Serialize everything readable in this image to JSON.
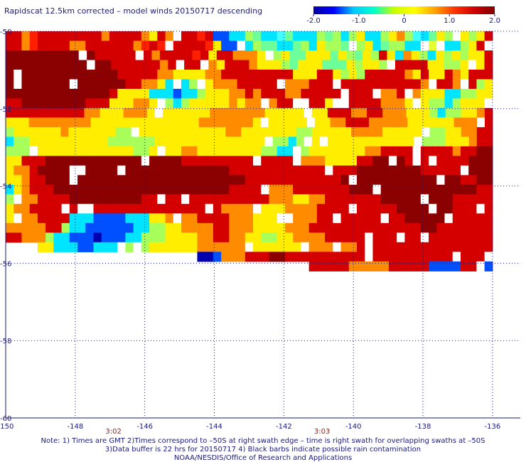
{
  "title": "Rapidscat 12.5km corrected – model winds 20150717 descending",
  "colorbar": {
    "ticks": [
      "-2.0",
      "-1.0",
      "0",
      "1.0",
      "2.0"
    ],
    "tick_values": [
      -2.0,
      -1.0,
      0,
      1.0,
      2.0
    ],
    "stops": [
      "#0000a0",
      "#0000ff",
      "#00c8ff",
      "#00ffcc",
      "#c8ff00",
      "#ffff00",
      "#ffa500",
      "#ff3300",
      "#cc0000",
      "#800000"
    ]
  },
  "chart_data": {
    "type": "heatmap",
    "title": "Rapidscat 12.5km corrected – model winds 20150717 descending",
    "value_range": [
      -2.0,
      2.0
    ],
    "x_ticks": [
      "-150",
      "-148",
      "-146",
      "-144",
      "-142",
      "-140",
      "-138",
      "-136"
    ],
    "x_values": [
      -150,
      -148,
      -146,
      -144,
      -142,
      -140,
      -138,
      -136
    ],
    "y_ticks": [
      "-50",
      "-52",
      "-54",
      "-56",
      "-58",
      "-60"
    ],
    "y_values": [
      -50,
      -52,
      -54,
      -56,
      -58,
      -60
    ],
    "xlim": [
      -150,
      -135.2
    ],
    "ylim": [
      -60,
      -50
    ],
    "grid": true,
    "time_labels": [
      {
        "text": "3:02",
        "x": -146.9
      },
      {
        "text": "3:03",
        "x": -140.9
      }
    ],
    "rows": [
      "RROrRRRRRRRRORRRROYRORRRrRBBCCGgCCcgCCCGgGCGYCCGYOGcCgYGCYGYR",
      "RROrRRRROORRRRRROrRrRRRRRrYBBCCGggCCgGCYGGgCGYCgGGCCGyGCCGYRY",
      "DDDDDDDDDDDRRRRRRRORRRRrRYRROOOYgGYggYYYgYGgYGRYCOYGCYGYGYYR",
      "DDDDDDDDDDDDDRRRRRRORRRROOYRRROYYYGgYYYgggYGYYGRRRRRYYGGYOYR",
      "DDDDDDDDDDDDDDRRRRROOYYYYOORRRRRRRRRYYYRRYGYGRRRRROYRYYROYRRR",
      "DDDDDDDDDDDDDDDRROOYCCCGYYOOORRRRRROOORRRRRRRRRRRRRROORROORGY",
      "DDDDDDDDDDDDDRYYYYCCCBCCGYYYOORORRROORRRRRRRRRROORROYYYCCGGYY",
      "RRDDDDDDDDRRRYYYOOYYGCGYYYYYOYOOOORRORRRYORRRRROOOYYYGGCGYYYR",
      "RRRRRRRRRROOYYYOOOYYYYYYYYOOOOOOOYYYYYOYYRRROORROOOYYYGCGGYYOR",
      "YYYOOOOOOOOYYYYYYYYYYYYYYOOOOOOOYYYYYYYYYYOORRROOOOOYYYYYYOOORR",
      "GYYYYYYOYYYYYYGGYYYYYYYYYYYYOOYYYYYYYGGYYYYYOOOOYYYYYYGGYYOORR",
      "CGGYYYYYYYYYYGGGGGGYYYYYYYYYYYYYYGGGCGGYYYYYYYYYYYYYGGGGYYYORR",
      "GGGYYYYYYYYYYYYYGGYYYYOOYYYYYYYYGGCCGGYYYYYYYOORRRRRRRRRORRDD",
      "YYRRRDDDDDDDDDDDDDDDDDRRRRRRRRRRRRRRROOOYYYYRRDDDDRRRRRRRRDDD",
      "YOORDDDDDDDDDDDDDDDDDDDDDDDDRRRRRRRRRRRRRRRRDDDDDDDDRRRRRDDDD",
      "YYORRDDDDDDDDDDDDDDDDDDDDDDDDDRRRRRRRRRRRRDDDDDDDDDDDDDDDRRDD",
      "CYORRRDDDDDDDDDDDDDDDDDDDDDDRRRRROOORRRRRRRDDDDDDDDDDDDDDDDRR",
      "GYOORRRRDDDDDDDDDRRRRRRRRRRRRRRRROOOYYOORRRRRRRDDDDDDDDDRRRRR",
      "YOORRRRRRRRRRRRRRRRRRRRRRRROOOOOYYYOOOORRRRRRRRRRDDDDDDDRRRRR",
      "YOOORRRRCCCBBBBCCCYYOOOORRRROOOYYYYOOOORRRRRRRRRRRDDDDDRRRRRR",
      "OOOOORRGCCBBBBBBCCGGYYOOOORROOOYYYYOOORRRRRRRRRRRRRRDDRRRRRRR",
      "RROOOGCCBBBbBBBCCGGGYYYYOORROOYYGGYYOOOORRRRRRRRRRRRRRRRRRRRR",
      "....YYCCCBBCCCCGGGYYYYYYOOOOOOOYYYYYYOOOOOOORRRRRRRRRRRRRRRRR",
      "........................bbBOOORRRDDRRRRRRRRRRRRRRRRRRRRRRRRRR",
      "......................................RRRRROOOOORRRRRBBBBRRRB"
    ]
  },
  "footnote": {
    "line1": "Note: 1) Times are GMT 2)Times correspond to –50S at right swath edge – time is right swath for overlapping swaths at –50S",
    "line2": "3)Data buffer is 22 hrs for 20150717 4) Black barbs indicate possible rain contamination",
    "line3": "NOAA/NESDIS/Office of Research and Applications"
  }
}
